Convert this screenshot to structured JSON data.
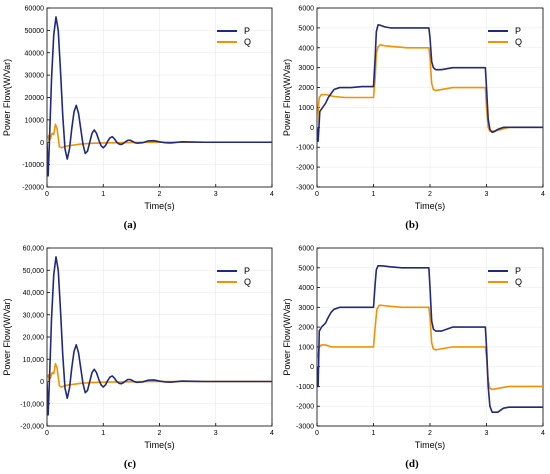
{
  "chart_data": [
    {
      "type": "line",
      "panel_label": "(a)",
      "xlabel": "Time(s)",
      "ylabel": "Power Flow(W/Var)",
      "xlim": [
        0,
        4
      ],
      "ylim": [
        -20000,
        60000
      ],
      "xticks": [
        "0",
        "1",
        "2",
        "3",
        "4"
      ],
      "yticks": [
        "-20000",
        "-10000",
        "0",
        "10000",
        "20000",
        "30000",
        "40000",
        "50000",
        "60000"
      ],
      "legend_position": "top-right",
      "series": [
        {
          "name": "P",
          "color": "#1f2a7a",
          "x": [
            0,
            0.02,
            0.05,
            0.08,
            0.12,
            0.16,
            0.2,
            0.24,
            0.28,
            0.32,
            0.36,
            0.4,
            0.44,
            0.48,
            0.52,
            0.56,
            0.6,
            0.64,
            0.68,
            0.72,
            0.76,
            0.8,
            0.84,
            0.88,
            0.92,
            0.96,
            1.0,
            1.04,
            1.08,
            1.12,
            1.16,
            1.2,
            1.24,
            1.28,
            1.32,
            1.36,
            1.4,
            1.44,
            1.48,
            1.52,
            1.56,
            1.6,
            1.7,
            1.8,
            1.9,
            2.0,
            2.1,
            2.2,
            2.4,
            2.6,
            2.8,
            3.0,
            3.5,
            4.0
          ],
          "y": [
            0,
            -15000,
            5000,
            28000,
            48000,
            56000,
            50000,
            32000,
            12000,
            -3000,
            -7500,
            -3000,
            6000,
            13500,
            16500,
            13000,
            6000,
            -1000,
            -5000,
            -4000,
            0,
            4000,
            5500,
            4000,
            1000,
            -1500,
            -2500,
            -1500,
            500,
            2000,
            2500,
            1500,
            0,
            -800,
            -1000,
            -500,
            300,
            900,
            900,
            400,
            -200,
            -400,
            -200,
            600,
            700,
            200,
            -200,
            -300,
            200,
            100,
            0,
            0,
            0,
            0
          ]
        },
        {
          "name": "Q",
          "color": "#f39200",
          "x": [
            0,
            0.03,
            0.06,
            0.09,
            0.12,
            0.15,
            0.18,
            0.22,
            0.26,
            0.3,
            0.4,
            0.6,
            0.8,
            1.0,
            1.5,
            2.0,
            2.5,
            3.0,
            3.5,
            4.0
          ],
          "y": [
            0,
            3000,
            1500,
            4000,
            3500,
            8000,
            6000,
            -2000,
            -2500,
            -2000,
            -1500,
            -800,
            -500,
            -300,
            -100,
            0,
            0,
            0,
            0,
            0
          ]
        }
      ]
    },
    {
      "type": "line",
      "panel_label": "(b)",
      "xlabel": "Time(s)",
      "ylabel": "Power Flow(W/Var)",
      "xlim": [
        0,
        4
      ],
      "ylim": [
        -3000,
        6000
      ],
      "xticks": [
        "0",
        "1",
        "2",
        "3",
        "4"
      ],
      "yticks": [
        "-3000",
        "-2000",
        "-1000",
        "0",
        "1000",
        "2000",
        "3000",
        "4000",
        "5000",
        "6000"
      ],
      "legend_position": "top-right",
      "series": [
        {
          "name": "P",
          "color": "#1f2a7a",
          "x": [
            0,
            0.02,
            0.05,
            0.1,
            0.15,
            0.2,
            0.25,
            0.3,
            0.4,
            0.6,
            0.8,
            1.0,
            1.03,
            1.05,
            1.08,
            1.1,
            1.15,
            1.2,
            1.3,
            1.5,
            1.7,
            1.9,
            1.98,
            2.0,
            2.03,
            2.06,
            2.1,
            2.2,
            2.4,
            2.6,
            2.8,
            2.98,
            3.0,
            3.03,
            3.06,
            3.1,
            3.15,
            3.2,
            3.3,
            3.5,
            3.8,
            4.0
          ],
          "y": [
            0,
            -700,
            800,
            1000,
            1200,
            1500,
            1700,
            1900,
            2000,
            2000,
            2050,
            2050,
            3500,
            4800,
            5150,
            5150,
            5100,
            5050,
            5000,
            5000,
            5000,
            5000,
            5000,
            4500,
            3300,
            3000,
            2900,
            2900,
            3000,
            3000,
            3000,
            3000,
            2000,
            400,
            -100,
            -250,
            -200,
            -100,
            0,
            0,
            0,
            0
          ]
        },
        {
          "name": "Q",
          "color": "#f39200",
          "x": [
            0,
            0.02,
            0.04,
            0.08,
            0.15,
            0.3,
            0.5,
            0.8,
            1.0,
            1.03,
            1.05,
            1.08,
            1.12,
            1.2,
            1.4,
            1.6,
            1.8,
            1.98,
            2.0,
            2.03,
            2.06,
            2.1,
            2.2,
            2.4,
            2.6,
            2.8,
            2.98,
            3.0,
            3.03,
            3.06,
            3.1,
            3.2,
            3.4,
            3.6,
            4.0
          ],
          "y": [
            0,
            800,
            1500,
            1650,
            1650,
            1550,
            1500,
            1500,
            1500,
            2500,
            3700,
            4050,
            4150,
            4100,
            4050,
            4000,
            4000,
            4000,
            3500,
            2200,
            1900,
            1850,
            1900,
            2000,
            2000,
            2000,
            2000,
            1000,
            0,
            -200,
            -200,
            -150,
            0,
            0,
            0
          ]
        }
      ]
    },
    {
      "type": "line",
      "panel_label": "(c)",
      "xlabel": "Time(s)",
      "ylabel": "Power Flow(W/Var)",
      "xlim": [
        0,
        4
      ],
      "ylim": [
        -20000,
        60000
      ],
      "xticks": [
        "0",
        "1",
        "2",
        "3",
        "4"
      ],
      "yticks": [
        "-20,000",
        "-10,000",
        "0",
        "10,000",
        "20,000",
        "30,000",
        "40,000",
        "50,000",
        "60,000"
      ],
      "legend_position": "top-right",
      "series": [
        {
          "name": "P",
          "color": "#1f2a7a",
          "x": [
            0,
            0.02,
            0.05,
            0.08,
            0.12,
            0.16,
            0.2,
            0.24,
            0.28,
            0.32,
            0.36,
            0.4,
            0.44,
            0.48,
            0.52,
            0.56,
            0.6,
            0.64,
            0.68,
            0.72,
            0.76,
            0.8,
            0.84,
            0.88,
            0.92,
            0.96,
            1.0,
            1.04,
            1.08,
            1.12,
            1.16,
            1.2,
            1.24,
            1.28,
            1.32,
            1.36,
            1.4,
            1.44,
            1.48,
            1.52,
            1.56,
            1.6,
            1.7,
            1.8,
            1.9,
            2.0,
            2.1,
            2.2,
            2.4,
            2.6,
            2.8,
            3.0,
            3.5,
            4.0
          ],
          "y": [
            0,
            -15000,
            5000,
            28000,
            48000,
            56000,
            50000,
            32000,
            12000,
            -3000,
            -7500,
            -3000,
            6000,
            13500,
            16500,
            13000,
            6000,
            -1000,
            -5000,
            -4000,
            0,
            4000,
            5500,
            4000,
            1000,
            -1500,
            -2500,
            -1500,
            500,
            2000,
            2500,
            1500,
            0,
            -800,
            -1000,
            -500,
            300,
            900,
            900,
            400,
            -200,
            -400,
            -200,
            600,
            700,
            200,
            -200,
            -300,
            200,
            100,
            0,
            0,
            0,
            0
          ]
        },
        {
          "name": "Q",
          "color": "#f39200",
          "x": [
            0,
            0.03,
            0.06,
            0.09,
            0.12,
            0.15,
            0.18,
            0.22,
            0.26,
            0.3,
            0.4,
            0.6,
            0.8,
            1.0,
            1.5,
            2.0,
            2.5,
            3.0,
            3.5,
            4.0
          ],
          "y": [
            0,
            3000,
            1500,
            4000,
            3500,
            8000,
            6000,
            -2000,
            -2500,
            -2000,
            -1500,
            -800,
            -500,
            -300,
            -100,
            0,
            0,
            0,
            0,
            0
          ]
        }
      ]
    },
    {
      "type": "line",
      "panel_label": "(d)",
      "xlabel": "Time(s)",
      "ylabel": "Power Flow(W/Var)",
      "xlim": [
        0,
        4
      ],
      "ylim": [
        -3000,
        6000
      ],
      "xticks": [
        "0",
        "1",
        "2",
        "3",
        "4"
      ],
      "yticks": [
        "-3000",
        "-2000",
        "-1000",
        "0",
        "1000",
        "2000",
        "3000",
        "4000",
        "5000",
        "6000"
      ],
      "legend_position": "top-right",
      "series": [
        {
          "name": "P",
          "color": "#1f2a7a",
          "x": [
            0,
            0.02,
            0.04,
            0.08,
            0.15,
            0.2,
            0.25,
            0.3,
            0.4,
            0.5,
            0.7,
            0.9,
            1.0,
            1.03,
            1.05,
            1.08,
            1.1,
            1.15,
            1.3,
            1.5,
            1.7,
            1.9,
            1.98,
            2.0,
            2.03,
            2.06,
            2.1,
            2.2,
            2.4,
            2.6,
            2.8,
            2.98,
            3.0,
            3.03,
            3.06,
            3.1,
            3.2,
            3.3,
            3.4,
            3.6,
            4.0
          ],
          "y": [
            0,
            -1000,
            1800,
            2000,
            2200,
            2500,
            2750,
            2900,
            3000,
            3000,
            3000,
            3000,
            3000,
            4200,
            4900,
            5100,
            5100,
            5100,
            5050,
            5000,
            5000,
            5000,
            5000,
            4000,
            2300,
            1900,
            1800,
            1800,
            2000,
            2000,
            2000,
            2000,
            1000,
            -1000,
            -2000,
            -2300,
            -2300,
            -2100,
            -2050,
            -2050,
            -2050
          ]
        },
        {
          "name": "Q",
          "color": "#f39200",
          "x": [
            0,
            0.02,
            0.04,
            0.08,
            0.15,
            0.25,
            0.4,
            0.6,
            0.8,
            1.0,
            1.03,
            1.06,
            1.1,
            1.15,
            1.3,
            1.5,
            1.7,
            1.9,
            1.98,
            2.0,
            2.03,
            2.06,
            2.1,
            2.2,
            2.4,
            2.6,
            2.8,
            2.98,
            3.0,
            3.03,
            3.06,
            3.1,
            3.2,
            3.4,
            3.6,
            4.0
          ],
          "y": [
            0,
            500,
            1000,
            1100,
            1100,
            1000,
            1000,
            1000,
            1000,
            1000,
            2000,
            2900,
            3100,
            3100,
            3050,
            3000,
            3000,
            3000,
            3000,
            2500,
            1200,
            900,
            850,
            900,
            1000,
            1000,
            1000,
            1000,
            500,
            -700,
            -1100,
            -1150,
            -1100,
            -1000,
            -1000,
            -1000
          ]
        }
      ]
    }
  ]
}
